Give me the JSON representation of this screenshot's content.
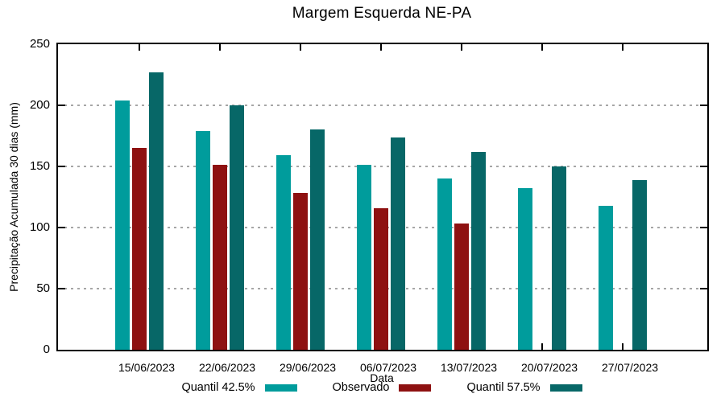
{
  "chart_data": {
    "type": "bar",
    "title": "Margem Esquerda NE-PA",
    "xlabel": "Data",
    "ylabel": "Precipitação Acumulada 30 dias (mm)",
    "ylim": [
      0,
      250
    ],
    "yticks": [
      0,
      50,
      100,
      150,
      200,
      250
    ],
    "grid": "horizontal dotted gray lines at y ticks",
    "legend_position": "bottom",
    "categories": [
      "15/06/2023",
      "22/06/2023",
      "29/06/2023",
      "06/07/2023",
      "13/07/2023",
      "20/07/2023",
      "27/07/2023"
    ],
    "series": [
      {
        "name": "Quantil 42.5%",
        "color": "#009C9C",
        "values": [
          204,
          179,
          159,
          151,
          140,
          132,
          118
        ]
      },
      {
        "name": "Observado",
        "color": "#8E1111",
        "values": [
          165,
          151,
          128,
          116,
          103,
          null,
          null
        ]
      },
      {
        "name": "Quantil 57.5%",
        "color": "#076767",
        "values": [
          227,
          200,
          180,
          174,
          162,
          150,
          139
        ]
      }
    ],
    "colors": {
      "axis": "#000000",
      "gridline": "#a6a6a6",
      "background": "#ffffff",
      "quantil_425": "#009C9C",
      "observado": "#8E1111",
      "quantil_575": "#076767"
    }
  }
}
